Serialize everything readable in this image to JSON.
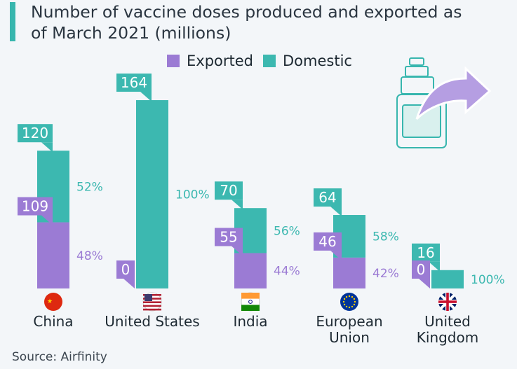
{
  "title": "Number of vaccine doses produced and exported as of March 2021 (millions)",
  "source": "Source: Airfinity",
  "colors": {
    "exported": "#9b7bd4",
    "domestic": "#3cb8b0",
    "accent": "#37b6ae"
  },
  "legend": {
    "exported": "Exported",
    "domestic": "Domestic"
  },
  "chart_data": {
    "type": "bar",
    "stacked": true,
    "title": "Number of vaccine doses produced and exported as of March 2021 (millions)",
    "categories": [
      "China",
      "United States",
      "India",
      "European Union",
      "United Kingdom"
    ],
    "series": [
      {
        "name": "Exported",
        "values": [
          48,
          0,
          44,
          42,
          0
        ],
        "labels": [
          "48%",
          "",
          "44%",
          "42%",
          ""
        ]
      },
      {
        "name": "Domestic",
        "values": [
          52,
          100,
          56,
          58,
          100
        ],
        "labels": [
          "52%",
          "100%",
          "56%",
          "58%",
          "100%"
        ]
      }
    ],
    "total_produced": [
      120,
      164,
      70,
      64,
      16
    ],
    "exported_doses": [
      109,
      0,
      55,
      46,
      0
    ],
    "flag_icons": [
      "china-flag-icon",
      "us-flag-icon",
      "india-flag-icon",
      "eu-flag-icon",
      "uk-flag-icon"
    ],
    "unit": "millions of doses",
    "xlabel": "",
    "ylabel": ""
  }
}
